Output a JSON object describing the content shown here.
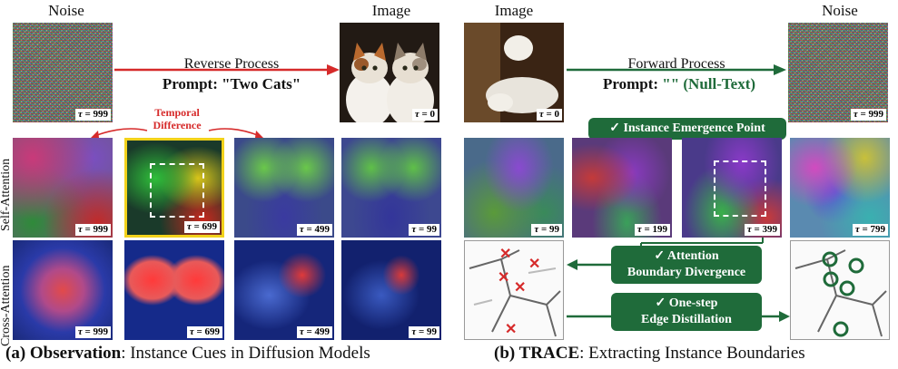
{
  "left": {
    "noise_header": "Noise",
    "image_header": "Image",
    "process": "Reverse Process",
    "prompt": "Prompt: \"Two Cats\"",
    "temporal": "Temporal",
    "difference": "Difference",
    "self_attention": "Self-Attention",
    "cross_attention": "Cross-Attention",
    "tau_noise": "= 999",
    "tau_image": "= 0",
    "self_taus": [
      "= 999",
      "= 699",
      "= 499",
      "= 99"
    ],
    "cross_taus": [
      "= 999",
      "= 699",
      "= 499",
      "= 99"
    ],
    "caption_bold": "(a) Observation",
    "caption_rest": ": Instance Cues in Diffusion Models"
  },
  "right": {
    "image_header": "Image",
    "noise_header": "Noise",
    "process": "Forward Process",
    "prompt_prefix": "Prompt: ",
    "prompt_value": "\"\" (Null-Text)",
    "tau_image": "= 0",
    "tau_noise": "= 999",
    "attn_taus": [
      "= 99",
      "= 199",
      "= 399",
      "= 799"
    ],
    "badge_emergence": "✓ Instance Emergence Point",
    "badge_divergence_1": "✓ Attention",
    "badge_divergence_2": "Boundary Divergence",
    "badge_edge_1": "✓ One-step",
    "badge_edge_2": "Edge Distillation",
    "caption_bold": "(b) TRACE",
    "caption_rest": ": Extracting Instance Boundaries"
  },
  "tau_symbol": "τ",
  "colors": {
    "green": "#1f6b3a",
    "red": "#d62a2a",
    "yellow": "#f2d21b"
  }
}
